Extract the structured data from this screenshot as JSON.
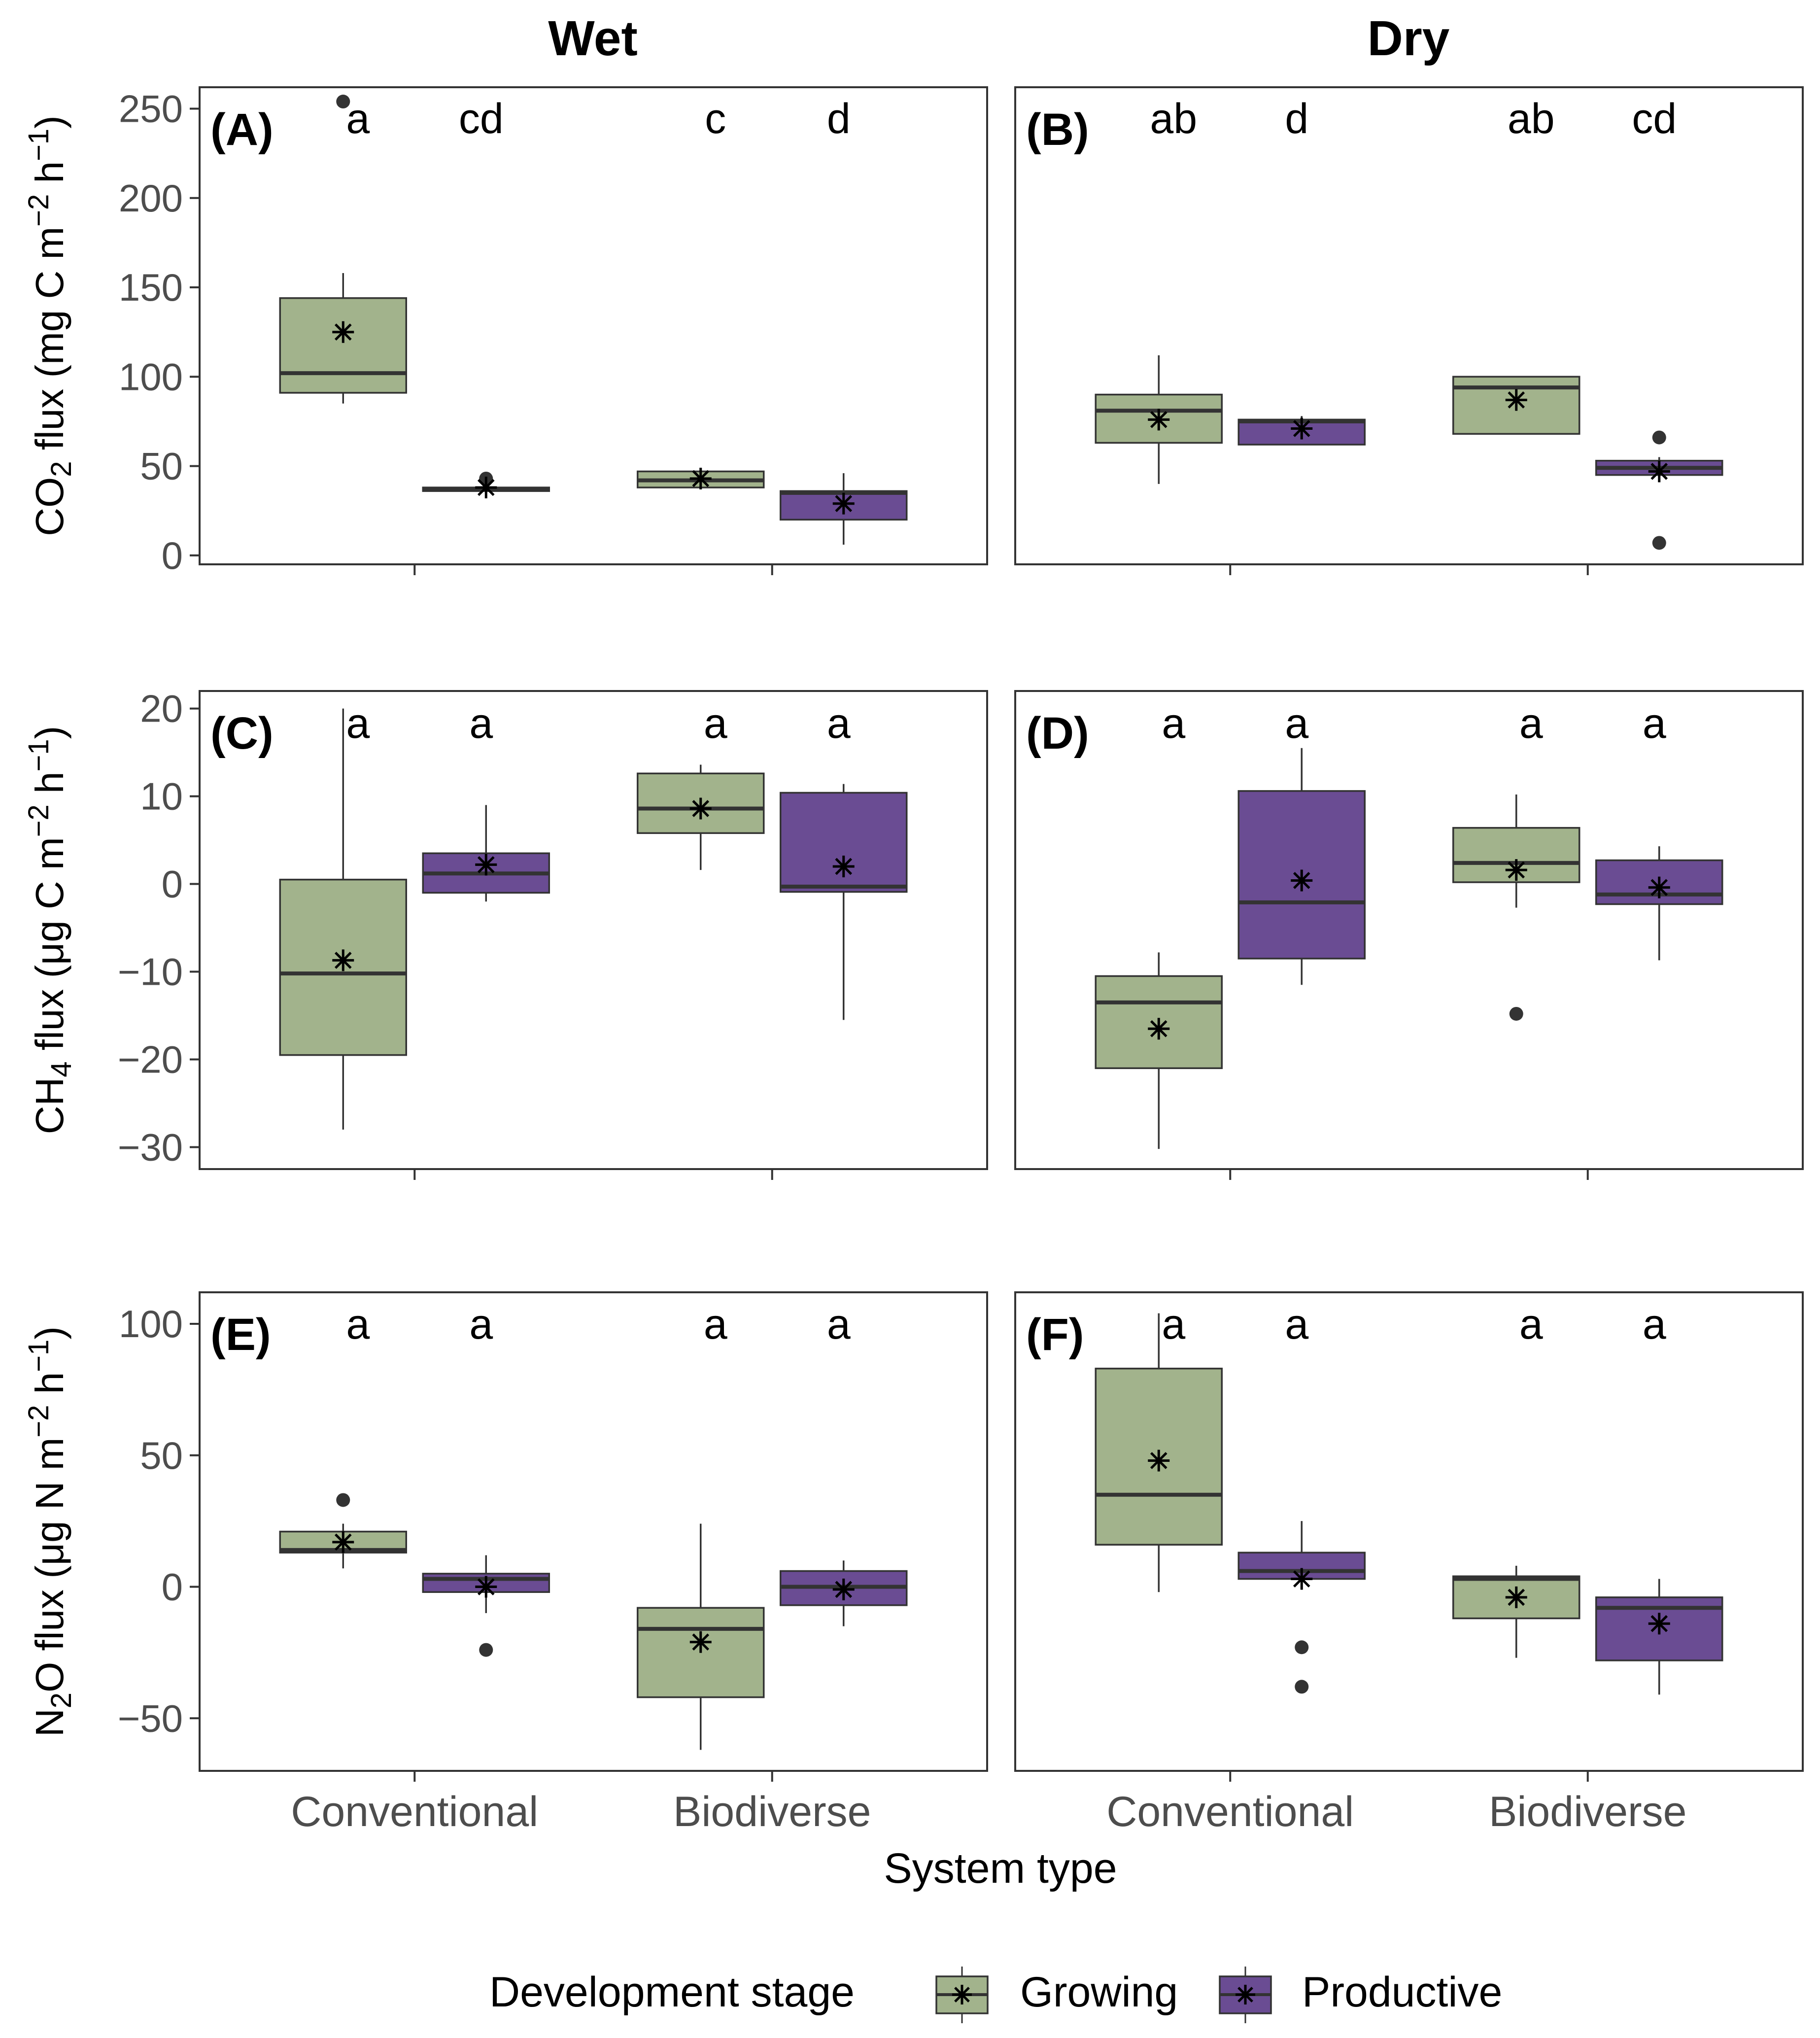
{
  "chart_data": {
    "type": "boxplot",
    "columns": [
      "Wet",
      "Dry"
    ],
    "x_title": "System type",
    "categories": [
      "Conventional",
      "Biodiverse"
    ],
    "legend": {
      "title": "Development stage",
      "entries": [
        {
          "name": "Growing",
          "color": "#a2b38c"
        },
        {
          "name": "Productive",
          "color": "#6a4c93"
        }
      ]
    },
    "rows": [
      {
        "ylabel_main": "CO",
        "ylabel_sub": "2",
        "ylabel_rest": " flux (mg C m",
        "ylabel_sup1": "−2",
        "ylabel_mid": " h",
        "ylabel_sup2": "−1",
        "ylabel_end": ")",
        "ylim": [
          -5,
          262
        ],
        "yticks": [
          0,
          50,
          100,
          150,
          200,
          250
        ],
        "tick_labels": [
          "0",
          "50",
          "100",
          "150",
          "200",
          "250"
        ],
        "panels": [
          {
            "tag": "(A)",
            "boxes": [
              {
                "cat": 0,
                "stage": "Growing",
                "q1": 91,
                "median": 102,
                "q3": 144,
                "lo": 85,
                "hi": 158,
                "mean": 125,
                "outliers": [
                  254
                ],
                "letter": "a"
              },
              {
                "cat": 0,
                "stage": "Productive",
                "q1": 36,
                "median": 37,
                "q3": 38,
                "lo": 36,
                "hi": 38,
                "mean": 38,
                "outliers": [
                  43
                ],
                "letter": "cd"
              },
              {
                "cat": 1,
                "stage": "Growing",
                "q1": 38,
                "median": 42,
                "q3": 47,
                "lo": 38,
                "hi": 47,
                "mean": 43,
                "outliers": [],
                "letter": "c"
              },
              {
                "cat": 1,
                "stage": "Productive",
                "q1": 20,
                "median": 35,
                "q3": 36,
                "lo": 6,
                "hi": 46,
                "mean": 29,
                "outliers": [],
                "letter": "d"
              }
            ]
          },
          {
            "tag": "(B)",
            "boxes": [
              {
                "cat": 0,
                "stage": "Growing",
                "q1": 63,
                "median": 81,
                "q3": 90,
                "lo": 40,
                "hi": 112,
                "mean": 76,
                "outliers": [],
                "letter": "ab"
              },
              {
                "cat": 0,
                "stage": "Productive",
                "q1": 62,
                "median": 75,
                "q3": 76,
                "lo": 62,
                "hi": 78,
                "mean": 71,
                "outliers": [],
                "letter": "d"
              },
              {
                "cat": 1,
                "stage": "Growing",
                "q1": 68,
                "median": 94,
                "q3": 100,
                "lo": 68,
                "hi": 100,
                "mean": 87,
                "outliers": [],
                "letter": "ab"
              },
              {
                "cat": 1,
                "stage": "Productive",
                "q1": 45,
                "median": 49,
                "q3": 53,
                "lo": 45,
                "hi": 55,
                "mean": 47,
                "outliers": [
                  66,
                  7
                ],
                "letter": "cd"
              }
            ]
          }
        ]
      },
      {
        "ylabel_main": "CH",
        "ylabel_sub": "4",
        "ylabel_rest": " flux (μg C m",
        "ylabel_sup1": "−2",
        "ylabel_mid": " h",
        "ylabel_sup2": "−1",
        "ylabel_end": ")",
        "ylim": [
          -32.5,
          22
        ],
        "yticks": [
          -30,
          -20,
          -10,
          0,
          10,
          20
        ],
        "tick_labels": [
          "−30",
          "−20",
          "−10",
          "0",
          "10",
          "20"
        ],
        "panels": [
          {
            "tag": "(C)",
            "boxes": [
              {
                "cat": 0,
                "stage": "Growing",
                "q1": -19.5,
                "median": -10.2,
                "q3": 0.5,
                "lo": -28,
                "hi": 20,
                "mean": -8.7,
                "outliers": [],
                "letter": "a"
              },
              {
                "cat": 0,
                "stage": "Productive",
                "q1": -1.0,
                "median": 1.2,
                "q3": 3.5,
                "lo": -2,
                "hi": 9,
                "mean": 2.2,
                "outliers": [],
                "letter": "a"
              },
              {
                "cat": 1,
                "stage": "Growing",
                "q1": 5.8,
                "median": 8.6,
                "q3": 12.6,
                "lo": 1.6,
                "hi": 13.6,
                "mean": 8.6,
                "outliers": [],
                "letter": "a"
              },
              {
                "cat": 1,
                "stage": "Productive",
                "q1": -0.9,
                "median": -0.3,
                "q3": 10.4,
                "lo": -15.5,
                "hi": 11.4,
                "mean": 2.0,
                "outliers": [],
                "letter": "a"
              }
            ]
          },
          {
            "tag": "(D)",
            "boxes": [
              {
                "cat": 0,
                "stage": "Growing",
                "q1": -21,
                "median": -13.5,
                "q3": -10.5,
                "lo": -30.2,
                "hi": -7.8,
                "mean": -16.5,
                "outliers": [],
                "letter": "a"
              },
              {
                "cat": 0,
                "stage": "Productive",
                "q1": -8.5,
                "median": -2.1,
                "q3": 10.6,
                "lo": -11.5,
                "hi": 15.5,
                "mean": 0.4,
                "outliers": [],
                "letter": "a"
              },
              {
                "cat": 1,
                "stage": "Growing",
                "q1": 0.2,
                "median": 2.4,
                "q3": 6.4,
                "lo": -2.7,
                "hi": 10.2,
                "mean": 1.6,
                "outliers": [
                  -14.8
                ],
                "letter": "a"
              },
              {
                "cat": 1,
                "stage": "Productive",
                "q1": -2.3,
                "median": -1.2,
                "q3": 2.7,
                "lo": -8.7,
                "hi": 4.3,
                "mean": -0.4,
                "outliers": [],
                "letter": "a"
              }
            ]
          }
        ]
      },
      {
        "ylabel_main": "N",
        "ylabel_sub": "2",
        "ylabel_rest": "O flux (μg N m",
        "ylabel_sup1": "−2",
        "ylabel_mid": " h",
        "ylabel_sup2": "−1",
        "ylabel_end": ")",
        "ylim": [
          -70,
          112
        ],
        "yticks": [
          -50,
          0,
          50,
          100
        ],
        "tick_labels": [
          "−50",
          "0",
          "50",
          "100"
        ],
        "panels": [
          {
            "tag": "(E)",
            "boxes": [
              {
                "cat": 0,
                "stage": "Growing",
                "q1": 13,
                "median": 14,
                "q3": 21,
                "lo": 7,
                "hi": 24,
                "mean": 17,
                "outliers": [
                  33
                ],
                "letter": "a"
              },
              {
                "cat": 0,
                "stage": "Productive",
                "q1": -2,
                "median": 3,
                "q3": 5,
                "lo": -10,
                "hi": 12,
                "mean": 0,
                "outliers": [
                  -24
                ],
                "letter": "a"
              },
              {
                "cat": 1,
                "stage": "Growing",
                "q1": -42,
                "median": -16,
                "q3": -8,
                "lo": -62,
                "hi": 24,
                "mean": -21,
                "outliers": [],
                "letter": "a"
              },
              {
                "cat": 1,
                "stage": "Productive",
                "q1": -7,
                "median": 0,
                "q3": 6,
                "lo": -15,
                "hi": 10,
                "mean": -1,
                "outliers": [],
                "letter": "a"
              }
            ]
          },
          {
            "tag": "(F)",
            "boxes": [
              {
                "cat": 0,
                "stage": "Growing",
                "q1": 16,
                "median": 35,
                "q3": 83,
                "lo": -2,
                "hi": 104,
                "mean": 48,
                "outliers": [],
                "letter": "a"
              },
              {
                "cat": 0,
                "stage": "Productive",
                "q1": 3,
                "median": 6,
                "q3": 13,
                "lo": 3,
                "hi": 25,
                "mean": 3,
                "outliers": [
                  -23,
                  -38
                ],
                "letter": "a"
              },
              {
                "cat": 1,
                "stage": "Growing",
                "q1": -12,
                "median": 3,
                "q3": 4,
                "lo": -27,
                "hi": 8,
                "mean": -4,
                "outliers": [],
                "letter": "a"
              },
              {
                "cat": 1,
                "stage": "Productive",
                "q1": -28,
                "median": -8,
                "q3": -4,
                "lo": -41,
                "hi": 3,
                "mean": -14,
                "outliers": [],
                "letter": "a"
              }
            ]
          }
        ]
      }
    ]
  }
}
